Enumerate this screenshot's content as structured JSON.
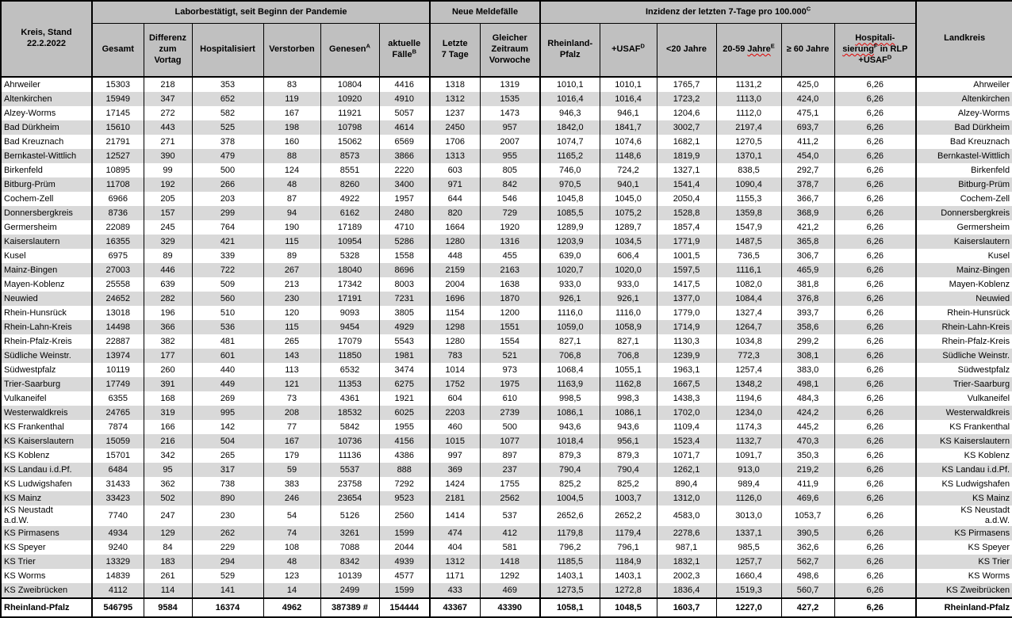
{
  "colors": {
    "header_bg": "#c0c0c0",
    "alt_row_bg": "#d9d9d9",
    "border": "#000000",
    "spellcheck_underline": "#e00000"
  },
  "header": {
    "kreis": "Kreis, Stand\n22.2.2022",
    "landkreis": "Landkreis",
    "groups": [
      "Laborbestätigt, seit Beginn der Pandemie",
      "Neue Meldefälle",
      "Inzidenz der letzten 7-Tage pro 100.000^C"
    ],
    "subheaders": [
      "Gesamt",
      "Differenz\nzum\nVortag",
      "Hospitalisiert",
      "Verstorben",
      "Genesen^A",
      "aktuelle\nFälle^B",
      "Letzte\n7 Tage",
      "Gleicher\nZeitraum\nVorwoche",
      "Rheinland-\nPfalz",
      "+USAF^D",
      "<20 Jahre",
      "20-59 ~Jahre~^E",
      "≥ 60 Jahre",
      "~Hospitali-~\n~sierung~^F in RLP\n+USAF^D"
    ]
  },
  "rows": [
    {
      "kreis": "Ahrweiler",
      "gesamt": "15303",
      "diff": "218",
      "hospitalisiert": "353",
      "verstorben": "83",
      "genesen": "10804",
      "aktuelle": "4416",
      "letzte7": "1318",
      "vorwoche": "1319",
      "inz_rlp": "1010,1",
      "inz_usaf": "1010,1",
      "inz_u20": "1765,7",
      "inz_2059": "1131,2",
      "inz_60": "425,0",
      "hosp_inz": "6,26",
      "landkreis": "Ahrweiler"
    },
    {
      "kreis": "Altenkirchen",
      "gesamt": "15949",
      "diff": "347",
      "hospitalisiert": "652",
      "verstorben": "119",
      "genesen": "10920",
      "aktuelle": "4910",
      "letzte7": "1312",
      "vorwoche": "1535",
      "inz_rlp": "1016,4",
      "inz_usaf": "1016,4",
      "inz_u20": "1723,2",
      "inz_2059": "1113,0",
      "inz_60": "424,0",
      "hosp_inz": "6,26",
      "landkreis": "Altenkirchen"
    },
    {
      "kreis": "Alzey-Worms",
      "gesamt": "17145",
      "diff": "272",
      "hospitalisiert": "582",
      "verstorben": "167",
      "genesen": "11921",
      "aktuelle": "5057",
      "letzte7": "1237",
      "vorwoche": "1473",
      "inz_rlp": "946,3",
      "inz_usaf": "946,1",
      "inz_u20": "1204,6",
      "inz_2059": "1112,0",
      "inz_60": "475,1",
      "hosp_inz": "6,26",
      "landkreis": "Alzey-Worms"
    },
    {
      "kreis": "Bad Dürkheim",
      "gesamt": "15610",
      "diff": "443",
      "hospitalisiert": "525",
      "verstorben": "198",
      "genesen": "10798",
      "aktuelle": "4614",
      "letzte7": "2450",
      "vorwoche": "957",
      "inz_rlp": "1842,0",
      "inz_usaf": "1841,7",
      "inz_u20": "3002,7",
      "inz_2059": "2197,4",
      "inz_60": "693,7",
      "hosp_inz": "6,26",
      "landkreis": "Bad Dürkheim"
    },
    {
      "kreis": "Bad Kreuznach",
      "gesamt": "21791",
      "diff": "271",
      "hospitalisiert": "378",
      "verstorben": "160",
      "genesen": "15062",
      "aktuelle": "6569",
      "letzte7": "1706",
      "vorwoche": "2007",
      "inz_rlp": "1074,7",
      "inz_usaf": "1074,6",
      "inz_u20": "1682,1",
      "inz_2059": "1270,5",
      "inz_60": "411,2",
      "hosp_inz": "6,26",
      "landkreis": "Bad Kreuznach"
    },
    {
      "kreis": "Bernkastel-Wittlich",
      "gesamt": "12527",
      "diff": "390",
      "hospitalisiert": "479",
      "verstorben": "88",
      "genesen": "8573",
      "aktuelle": "3866",
      "letzte7": "1313",
      "vorwoche": "955",
      "inz_rlp": "1165,2",
      "inz_usaf": "1148,6",
      "inz_u20": "1819,9",
      "inz_2059": "1370,1",
      "inz_60": "454,0",
      "hosp_inz": "6,26",
      "landkreis": "Bernkastel-Wittlich"
    },
    {
      "kreis": "Birkenfeld",
      "gesamt": "10895",
      "diff": "99",
      "hospitalisiert": "500",
      "verstorben": "124",
      "genesen": "8551",
      "aktuelle": "2220",
      "letzte7": "603",
      "vorwoche": "805",
      "inz_rlp": "746,0",
      "inz_usaf": "724,2",
      "inz_u20": "1327,1",
      "inz_2059": "838,5",
      "inz_60": "292,7",
      "hosp_inz": "6,26",
      "landkreis": "Birkenfeld"
    },
    {
      "kreis": "Bitburg-Prüm",
      "gesamt": "11708",
      "diff": "192",
      "hospitalisiert": "266",
      "verstorben": "48",
      "genesen": "8260",
      "aktuelle": "3400",
      "letzte7": "971",
      "vorwoche": "842",
      "inz_rlp": "970,5",
      "inz_usaf": "940,1",
      "inz_u20": "1541,4",
      "inz_2059": "1090,4",
      "inz_60": "378,7",
      "hosp_inz": "6,26",
      "landkreis": "Bitburg-Prüm"
    },
    {
      "kreis": "Cochem-Zell",
      "gesamt": "6966",
      "diff": "205",
      "hospitalisiert": "203",
      "verstorben": "87",
      "genesen": "4922",
      "aktuelle": "1957",
      "letzte7": "644",
      "vorwoche": "546",
      "inz_rlp": "1045,8",
      "inz_usaf": "1045,0",
      "inz_u20": "2050,4",
      "inz_2059": "1155,3",
      "inz_60": "366,7",
      "hosp_inz": "6,26",
      "landkreis": "Cochem-Zell"
    },
    {
      "kreis": "Donnersbergkreis",
      "gesamt": "8736",
      "diff": "157",
      "hospitalisiert": "299",
      "verstorben": "94",
      "genesen": "6162",
      "aktuelle": "2480",
      "letzte7": "820",
      "vorwoche": "729",
      "inz_rlp": "1085,5",
      "inz_usaf": "1075,2",
      "inz_u20": "1528,8",
      "inz_2059": "1359,8",
      "inz_60": "368,9",
      "hosp_inz": "6,26",
      "landkreis": "Donnersbergkreis"
    },
    {
      "kreis": "Germersheim",
      "gesamt": "22089",
      "diff": "245",
      "hospitalisiert": "764",
      "verstorben": "190",
      "genesen": "17189",
      "aktuelle": "4710",
      "letzte7": "1664",
      "vorwoche": "1920",
      "inz_rlp": "1289,9",
      "inz_usaf": "1289,7",
      "inz_u20": "1857,4",
      "inz_2059": "1547,9",
      "inz_60": "421,2",
      "hosp_inz": "6,26",
      "landkreis": "Germersheim"
    },
    {
      "kreis": "Kaiserslautern",
      "gesamt": "16355",
      "diff": "329",
      "hospitalisiert": "421",
      "verstorben": "115",
      "genesen": "10954",
      "aktuelle": "5286",
      "letzte7": "1280",
      "vorwoche": "1316",
      "inz_rlp": "1203,9",
      "inz_usaf": "1034,5",
      "inz_u20": "1771,9",
      "inz_2059": "1487,5",
      "inz_60": "365,8",
      "hosp_inz": "6,26",
      "landkreis": "Kaiserslautern"
    },
    {
      "kreis": "Kusel",
      "gesamt": "6975",
      "diff": "89",
      "hospitalisiert": "339",
      "verstorben": "89",
      "genesen": "5328",
      "aktuelle": "1558",
      "letzte7": "448",
      "vorwoche": "455",
      "inz_rlp": "639,0",
      "inz_usaf": "606,4",
      "inz_u20": "1001,5",
      "inz_2059": "736,5",
      "inz_60": "306,7",
      "hosp_inz": "6,26",
      "landkreis": "Kusel"
    },
    {
      "kreis": "Mainz-Bingen",
      "gesamt": "27003",
      "diff": "446",
      "hospitalisiert": "722",
      "verstorben": "267",
      "genesen": "18040",
      "aktuelle": "8696",
      "letzte7": "2159",
      "vorwoche": "2163",
      "inz_rlp": "1020,7",
      "inz_usaf": "1020,0",
      "inz_u20": "1597,5",
      "inz_2059": "1116,1",
      "inz_60": "465,9",
      "hosp_inz": "6,26",
      "landkreis": "Mainz-Bingen"
    },
    {
      "kreis": "Mayen-Koblenz",
      "gesamt": "25558",
      "diff": "639",
      "hospitalisiert": "509",
      "verstorben": "213",
      "genesen": "17342",
      "aktuelle": "8003",
      "letzte7": "2004",
      "vorwoche": "1638",
      "inz_rlp": "933,0",
      "inz_usaf": "933,0",
      "inz_u20": "1417,5",
      "inz_2059": "1082,0",
      "inz_60": "381,8",
      "hosp_inz": "6,26",
      "landkreis": "Mayen-Koblenz"
    },
    {
      "kreis": "Neuwied",
      "gesamt": "24652",
      "diff": "282",
      "hospitalisiert": "560",
      "verstorben": "230",
      "genesen": "17191",
      "aktuelle": "7231",
      "letzte7": "1696",
      "vorwoche": "1870",
      "inz_rlp": "926,1",
      "inz_usaf": "926,1",
      "inz_u20": "1377,0",
      "inz_2059": "1084,4",
      "inz_60": "376,8",
      "hosp_inz": "6,26",
      "landkreis": "Neuwied"
    },
    {
      "kreis": "Rhein-Hunsrück",
      "gesamt": "13018",
      "diff": "196",
      "hospitalisiert": "510",
      "verstorben": "120",
      "genesen": "9093",
      "aktuelle": "3805",
      "letzte7": "1154",
      "vorwoche": "1200",
      "inz_rlp": "1116,0",
      "inz_usaf": "1116,0",
      "inz_u20": "1779,0",
      "inz_2059": "1327,4",
      "inz_60": "393,7",
      "hosp_inz": "6,26",
      "landkreis": "Rhein-Hunsrück"
    },
    {
      "kreis": "Rhein-Lahn-Kreis",
      "gesamt": "14498",
      "diff": "366",
      "hospitalisiert": "536",
      "verstorben": "115",
      "genesen": "9454",
      "aktuelle": "4929",
      "letzte7": "1298",
      "vorwoche": "1551",
      "inz_rlp": "1059,0",
      "inz_usaf": "1058,9",
      "inz_u20": "1714,9",
      "inz_2059": "1264,7",
      "inz_60": "358,6",
      "hosp_inz": "6,26",
      "landkreis": "Rhein-Lahn-Kreis"
    },
    {
      "kreis": "Rhein-Pfalz-Kreis",
      "gesamt": "22887",
      "diff": "382",
      "hospitalisiert": "481",
      "verstorben": "265",
      "genesen": "17079",
      "aktuelle": "5543",
      "letzte7": "1280",
      "vorwoche": "1554",
      "inz_rlp": "827,1",
      "inz_usaf": "827,1",
      "inz_u20": "1130,3",
      "inz_2059": "1034,8",
      "inz_60": "299,2",
      "hosp_inz": "6,26",
      "landkreis": "Rhein-Pfalz-Kreis"
    },
    {
      "kreis": "Südliche Weinstr.",
      "gesamt": "13974",
      "diff": "177",
      "hospitalisiert": "601",
      "verstorben": "143",
      "genesen": "11850",
      "aktuelle": "1981",
      "letzte7": "783",
      "vorwoche": "521",
      "inz_rlp": "706,8",
      "inz_usaf": "706,8",
      "inz_u20": "1239,9",
      "inz_2059": "772,3",
      "inz_60": "308,1",
      "hosp_inz": "6,26",
      "landkreis": "Südliche Weinstr."
    },
    {
      "kreis": "Südwestpfalz",
      "gesamt": "10119",
      "diff": "260",
      "hospitalisiert": "440",
      "verstorben": "113",
      "genesen": "6532",
      "aktuelle": "3474",
      "letzte7": "1014",
      "vorwoche": "973",
      "inz_rlp": "1068,4",
      "inz_usaf": "1055,1",
      "inz_u20": "1963,1",
      "inz_2059": "1257,4",
      "inz_60": "383,0",
      "hosp_inz": "6,26",
      "landkreis": "Südwestpfalz"
    },
    {
      "kreis": "Trier-Saarburg",
      "gesamt": "17749",
      "diff": "391",
      "hospitalisiert": "449",
      "verstorben": "121",
      "genesen": "11353",
      "aktuelle": "6275",
      "letzte7": "1752",
      "vorwoche": "1975",
      "inz_rlp": "1163,9",
      "inz_usaf": "1162,8",
      "inz_u20": "1667,5",
      "inz_2059": "1348,2",
      "inz_60": "498,1",
      "hosp_inz": "6,26",
      "landkreis": "Trier-Saarburg"
    },
    {
      "kreis": "Vulkaneifel",
      "gesamt": "6355",
      "diff": "168",
      "hospitalisiert": "269",
      "verstorben": "73",
      "genesen": "4361",
      "aktuelle": "1921",
      "letzte7": "604",
      "vorwoche": "610",
      "inz_rlp": "998,5",
      "inz_usaf": "998,3",
      "inz_u20": "1438,3",
      "inz_2059": "1194,6",
      "inz_60": "484,3",
      "hosp_inz": "6,26",
      "landkreis": "Vulkaneifel"
    },
    {
      "kreis": "Westerwaldkreis",
      "gesamt": "24765",
      "diff": "319",
      "hospitalisiert": "995",
      "verstorben": "208",
      "genesen": "18532",
      "aktuelle": "6025",
      "letzte7": "2203",
      "vorwoche": "2739",
      "inz_rlp": "1086,1",
      "inz_usaf": "1086,1",
      "inz_u20": "1702,0",
      "inz_2059": "1234,0",
      "inz_60": "424,2",
      "hosp_inz": "6,26",
      "landkreis": "Westerwaldkreis"
    },
    {
      "kreis": "KS Frankenthal",
      "gesamt": "7874",
      "diff": "166",
      "hospitalisiert": "142",
      "verstorben": "77",
      "genesen": "5842",
      "aktuelle": "1955",
      "letzte7": "460",
      "vorwoche": "500",
      "inz_rlp": "943,6",
      "inz_usaf": "943,6",
      "inz_u20": "1109,4",
      "inz_2059": "1174,3",
      "inz_60": "445,2",
      "hosp_inz": "6,26",
      "landkreis": "KS Frankenthal"
    },
    {
      "kreis": "KS Kaiserslautern",
      "gesamt": "15059",
      "diff": "216",
      "hospitalisiert": "504",
      "verstorben": "167",
      "genesen": "10736",
      "aktuelle": "4156",
      "letzte7": "1015",
      "vorwoche": "1077",
      "inz_rlp": "1018,4",
      "inz_usaf": "956,1",
      "inz_u20": "1523,4",
      "inz_2059": "1132,7",
      "inz_60": "470,3",
      "hosp_inz": "6,26",
      "landkreis": "KS Kaiserslautern"
    },
    {
      "kreis": "KS Koblenz",
      "gesamt": "15701",
      "diff": "342",
      "hospitalisiert": "265",
      "verstorben": "179",
      "genesen": "11136",
      "aktuelle": "4386",
      "letzte7": "997",
      "vorwoche": "897",
      "inz_rlp": "879,3",
      "inz_usaf": "879,3",
      "inz_u20": "1071,7",
      "inz_2059": "1091,7",
      "inz_60": "350,3",
      "hosp_inz": "6,26",
      "landkreis": "KS Koblenz"
    },
    {
      "kreis": "KS Landau i.d.Pf.",
      "gesamt": "6484",
      "diff": "95",
      "hospitalisiert": "317",
      "verstorben": "59",
      "genesen": "5537",
      "aktuelle": "888",
      "letzte7": "369",
      "vorwoche": "237",
      "inz_rlp": "790,4",
      "inz_usaf": "790,4",
      "inz_u20": "1262,1",
      "inz_2059": "913,0",
      "inz_60": "219,2",
      "hosp_inz": "6,26",
      "landkreis": "KS Landau i.d.Pf."
    },
    {
      "kreis": "KS Ludwigshafen",
      "gesamt": "31433",
      "diff": "362",
      "hospitalisiert": "738",
      "verstorben": "383",
      "genesen": "23758",
      "aktuelle": "7292",
      "letzte7": "1424",
      "vorwoche": "1755",
      "inz_rlp": "825,2",
      "inz_usaf": "825,2",
      "inz_u20": "890,4",
      "inz_2059": "989,4",
      "inz_60": "411,9",
      "hosp_inz": "6,26",
      "landkreis": "KS Ludwigshafen"
    },
    {
      "kreis": "KS Mainz",
      "gesamt": "33423",
      "diff": "502",
      "hospitalisiert": "890",
      "verstorben": "246",
      "genesen": "23654",
      "aktuelle": "9523",
      "letzte7": "2181",
      "vorwoche": "2562",
      "inz_rlp": "1004,5",
      "inz_usaf": "1003,7",
      "inz_u20": "1312,0",
      "inz_2059": "1126,0",
      "inz_60": "469,6",
      "hosp_inz": "6,26",
      "landkreis": "KS Mainz"
    },
    {
      "kreis": "KS Neustadt\na.d.W.",
      "gesamt": "7740",
      "diff": "247",
      "hospitalisiert": "230",
      "verstorben": "54",
      "genesen": "5126",
      "aktuelle": "2560",
      "letzte7": "1414",
      "vorwoche": "537",
      "inz_rlp": "2652,6",
      "inz_usaf": "2652,2",
      "inz_u20": "4583,0",
      "inz_2059": "3013,0",
      "inz_60": "1053,7",
      "hosp_inz": "6,26",
      "landkreis": "KS Neustadt\na.d.W."
    },
    {
      "kreis": "KS Pirmasens",
      "gesamt": "4934",
      "diff": "129",
      "hospitalisiert": "262",
      "verstorben": "74",
      "genesen": "3261",
      "aktuelle": "1599",
      "letzte7": "474",
      "vorwoche": "412",
      "inz_rlp": "1179,8",
      "inz_usaf": "1179,4",
      "inz_u20": "2278,6",
      "inz_2059": "1337,1",
      "inz_60": "390,5",
      "hosp_inz": "6,26",
      "landkreis": "KS Pirmasens"
    },
    {
      "kreis": "KS Speyer",
      "gesamt": "9240",
      "diff": "84",
      "hospitalisiert": "229",
      "verstorben": "108",
      "genesen": "7088",
      "aktuelle": "2044",
      "letzte7": "404",
      "vorwoche": "581",
      "inz_rlp": "796,2",
      "inz_usaf": "796,1",
      "inz_u20": "987,1",
      "inz_2059": "985,5",
      "inz_60": "362,6",
      "hosp_inz": "6,26",
      "landkreis": "KS Speyer"
    },
    {
      "kreis": "KS Trier",
      "gesamt": "13329",
      "diff": "183",
      "hospitalisiert": "294",
      "verstorben": "48",
      "genesen": "8342",
      "aktuelle": "4939",
      "letzte7": "1312",
      "vorwoche": "1418",
      "inz_rlp": "1185,5",
      "inz_usaf": "1184,9",
      "inz_u20": "1832,1",
      "inz_2059": "1257,7",
      "inz_60": "562,7",
      "hosp_inz": "6,26",
      "landkreis": "KS Trier"
    },
    {
      "kreis": "KS Worms",
      "gesamt": "14839",
      "diff": "261",
      "hospitalisiert": "529",
      "verstorben": "123",
      "genesen": "10139",
      "aktuelle": "4577",
      "letzte7": "1171",
      "vorwoche": "1292",
      "inz_rlp": "1403,1",
      "inz_usaf": "1403,1",
      "inz_u20": "2002,3",
      "inz_2059": "1660,4",
      "inz_60": "498,6",
      "hosp_inz": "6,26",
      "landkreis": "KS Worms"
    },
    {
      "kreis": "KS Zweibrücken",
      "gesamt": "4112",
      "diff": "114",
      "hospitalisiert": "141",
      "verstorben": "14",
      "genesen": "2499",
      "aktuelle": "1599",
      "letzte7": "433",
      "vorwoche": "469",
      "inz_rlp": "1273,5",
      "inz_usaf": "1272,8",
      "inz_u20": "1836,4",
      "inz_2059": "1519,3",
      "inz_60": "560,7",
      "hosp_inz": "6,26",
      "landkreis": "KS Zweibrücken"
    }
  ],
  "total": {
    "kreis": "Rheinland-Pfalz",
    "gesamt": "546795",
    "diff": "9584",
    "hospitalisiert": "16374",
    "verstorben": "4962",
    "genesen": "387389 #",
    "aktuelle": "154444",
    "letzte7": "43367",
    "vorwoche": "43390",
    "inz_rlp": "1058,1",
    "inz_usaf": "1048,5",
    "inz_u20": "1603,7",
    "inz_2059": "1227,0",
    "inz_60": "427,2",
    "hosp_inz": "6,26",
    "landkreis": "Rheinland-Pfalz"
  }
}
